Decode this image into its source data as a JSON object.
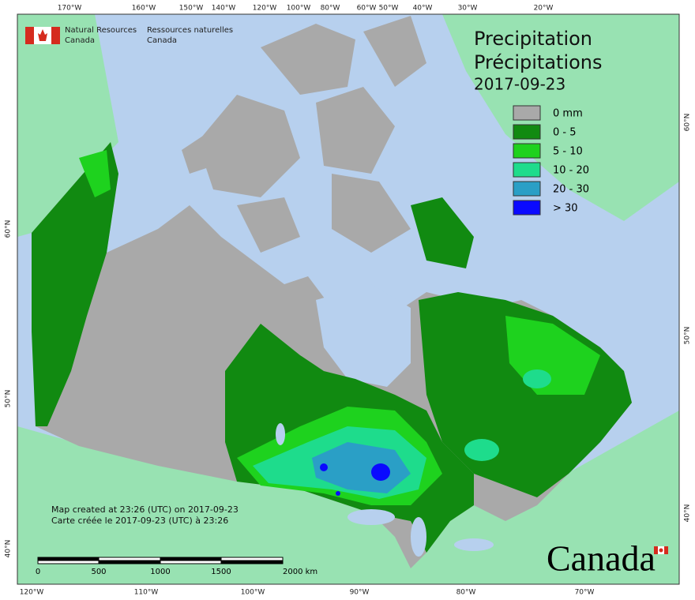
{
  "header": {
    "org_en": [
      "Natural Resources",
      "Canada"
    ],
    "org_fr": [
      "Ressources naturelles",
      "Canada"
    ]
  },
  "title": {
    "lines": [
      "Precipitation",
      "Précipitations",
      "2017-09-23"
    ]
  },
  "legend": {
    "items": [
      {
        "label": "0 mm",
        "color": "#a9a9a9"
      },
      {
        "label": "0 - 5",
        "color": "#118a11"
      },
      {
        "label": "5 - 10",
        "color": "#1ed21e"
      },
      {
        "label": "10 - 20",
        "color": "#1edc8c"
      },
      {
        "label": "20 - 30",
        "color": "#2a9fc6"
      },
      {
        "label": "> 30",
        "color": "#0a0aff"
      }
    ]
  },
  "graticule": {
    "top": [
      "170°W",
      "160°W",
      "150°W",
      "140°W",
      "120°W",
      "100°W",
      "80°W",
      "60°W",
      "50°W",
      "40°W",
      "30°W",
      "20°W"
    ],
    "bottom": [
      "120°W",
      "110°W",
      "100°W",
      "90°W",
      "80°W",
      "70°W"
    ],
    "left": [
      "60°N",
      "50°N",
      "40°N"
    ],
    "right": [
      "60°N",
      "50°N",
      "40°N"
    ]
  },
  "notes": [
    "Map created at 23:26 (UTC) on 2017-09-23",
    "Carte créée le 2017-09-23 (UTC) à 23:26"
  ],
  "scale_bar": {
    "labels": [
      "0",
      "500",
      "1000",
      "1500",
      "2000 km"
    ]
  },
  "wordmark": "Canada"
}
